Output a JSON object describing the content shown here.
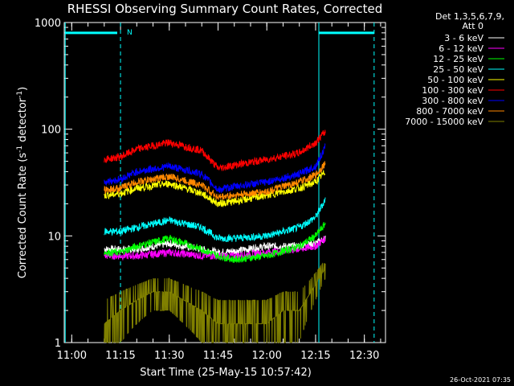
{
  "chart_data": {
    "type": "line",
    "title": "RHESSI Observing Summary Count Rates, Corrected",
    "ylabel": "Corrected Count Rate (s^-1 detector^-1)",
    "ylabel_parts": {
      "a": "Corrected Count Rate (s",
      "b": "-1",
      "c": " detector",
      "d": "-1",
      "e": ")"
    },
    "xlabel": "Start Time (25-May-15 10:57:42)",
    "y_scale": "log",
    "ylim": [
      1,
      1000
    ],
    "xlim": [
      "10:57:42",
      "12:36:30"
    ],
    "y_ticks": [
      "1",
      "10",
      "100",
      "1000"
    ],
    "x_ticks": [
      "11:00",
      "11:15",
      "11:30",
      "11:45",
      "12:00",
      "12:15",
      "12:30"
    ],
    "legend_header": [
      "Det 1,3,5,6,7,9,",
      "Att 0"
    ],
    "legend_placement": "right",
    "timestamp": "26-Oct-2021 07:35",
    "night_marker": "N",
    "attenuator_lines": [
      {
        "from": "10:58",
        "to": "11:14",
        "value": 800
      },
      {
        "from": "12:16",
        "to": "12:33",
        "value": 800
      }
    ],
    "vertical_markers": [
      {
        "time": "10:58",
        "style": "solid"
      },
      {
        "time": "11:15",
        "style": "dashed"
      },
      {
        "time": "12:16",
        "style": "solid"
      },
      {
        "time": "12:33",
        "style": "dashed"
      }
    ],
    "series": [
      {
        "name": "3 - 6 keV",
        "color": "#ffffff",
        "x": [
          "11:10",
          "11:15",
          "11:20",
          "11:30",
          "11:40",
          "11:45",
          "11:50",
          "12:00",
          "12:10",
          "12:15",
          "12:18"
        ],
        "values": [
          7.5,
          7.5,
          7.5,
          8.5,
          7.5,
          7.0,
          7.2,
          8.0,
          8.0,
          8.5,
          9.5
        ]
      },
      {
        "name": "6 - 12 keV",
        "color": "#ff00ff",
        "x": [
          "11:10",
          "11:15",
          "11:20",
          "11:30",
          "11:40",
          "11:45",
          "11:50",
          "12:00",
          "12:10",
          "12:15",
          "12:18"
        ],
        "values": [
          6.5,
          6.5,
          6.5,
          7.0,
          6.5,
          6.5,
          6.5,
          7.0,
          7.5,
          8.0,
          9.5
        ]
      },
      {
        "name": "12 - 25 keV",
        "color": "#00ff00",
        "x": [
          "11:10",
          "11:15",
          "11:20",
          "11:30",
          "11:40",
          "11:45",
          "11:50",
          "12:00",
          "12:10",
          "12:15",
          "12:18"
        ],
        "values": [
          7.0,
          7.0,
          8.0,
          9.5,
          7.5,
          6.5,
          6.0,
          6.5,
          8.0,
          10.0,
          13.0
        ]
      },
      {
        "name": "25 - 50 keV",
        "color": "#00ffff",
        "x": [
          "11:10",
          "11:15",
          "11:20",
          "11:30",
          "11:40",
          "11:45",
          "11:50",
          "12:00",
          "12:10",
          "12:15",
          "12:18"
        ],
        "values": [
          11,
          11,
          12,
          14,
          12,
          9.5,
          9.5,
          10,
          12,
          15,
          22
        ]
      },
      {
        "name": "50 - 100 keV",
        "color": "#ffff00",
        "x": [
          "11:10",
          "11:15",
          "11:20",
          "11:30",
          "11:40",
          "11:45",
          "11:50",
          "12:00",
          "12:10",
          "12:15",
          "12:18"
        ],
        "values": [
          24,
          25,
          28,
          31,
          25,
          20,
          21,
          24,
          28,
          32,
          40
        ]
      },
      {
        "name": "100 - 300 keV",
        "color": "#ff0000",
        "x": [
          "11:10",
          "11:15",
          "11:20",
          "11:30",
          "11:40",
          "11:45",
          "11:50",
          "12:00",
          "12:10",
          "12:15",
          "12:18"
        ],
        "values": [
          52,
          55,
          65,
          75,
          63,
          43,
          46,
          52,
          60,
          75,
          95
        ]
      },
      {
        "name": "300 - 800 keV",
        "color": "#0000ff",
        "x": [
          "11:10",
          "11:15",
          "11:20",
          "11:30",
          "11:40",
          "11:45",
          "11:50",
          "12:00",
          "12:10",
          "12:15",
          "12:18"
        ],
        "values": [
          32,
          34,
          40,
          45,
          38,
          27,
          29,
          32,
          38,
          45,
          68
        ]
      },
      {
        "name": "800 - 7000 keV",
        "color": "#ff8800",
        "x": [
          "11:10",
          "11:15",
          "11:20",
          "11:30",
          "11:40",
          "11:45",
          "11:50",
          "12:00",
          "12:10",
          "12:15",
          "12:18"
        ],
        "values": [
          27,
          28,
          32,
          36,
          30,
          23,
          24,
          26,
          32,
          37,
          48
        ]
      },
      {
        "name": "7000 - 15000 keV",
        "color": "#808000",
        "x": [
          "11:10",
          "11:15",
          "11:20",
          "11:25",
          "11:30",
          "11:40",
          "11:45",
          "11:50",
          "12:00",
          "12:05",
          "12:10",
          "12:15",
          "12:18"
        ],
        "values": [
          1.5,
          2.0,
          2.5,
          3.0,
          3.0,
          2.0,
          1.5,
          1.5,
          1.5,
          2.0,
          2.0,
          3.5,
          5.0
        ]
      }
    ]
  }
}
